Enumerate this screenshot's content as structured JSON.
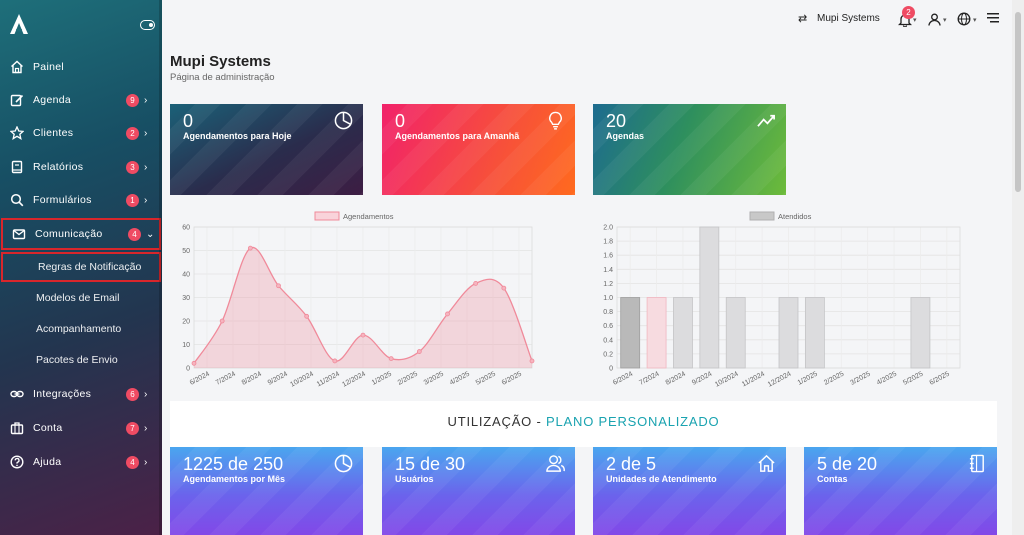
{
  "sidebar": {
    "items": [
      {
        "label": "Painel",
        "badge": null,
        "icon": "home-icon"
      },
      {
        "label": "Agenda",
        "badge": "9",
        "icon": "edit-icon"
      },
      {
        "label": "Clientes",
        "badge": "2",
        "icon": "star-icon"
      },
      {
        "label": "Relatórios",
        "badge": "3",
        "icon": "book-icon"
      },
      {
        "label": "Formulários",
        "badge": "1",
        "icon": "search-icon"
      },
      {
        "label": "Comunicação",
        "badge": "4",
        "icon": "mail-icon"
      },
      {
        "label": "Integrações",
        "badge": "6",
        "icon": "link-icon"
      },
      {
        "label": "Conta",
        "badge": "7",
        "icon": "briefcase-icon"
      },
      {
        "label": "Ajuda",
        "badge": "4",
        "icon": "help-icon"
      }
    ],
    "subitems": [
      {
        "label": "Regras de Notificação"
      },
      {
        "label": "Modelos de Email"
      },
      {
        "label": "Acompanhamento"
      },
      {
        "label": "Pacotes de Envio"
      }
    ]
  },
  "topbar": {
    "company": "Mupi Systems",
    "notifications": "2"
  },
  "header": {
    "title": "Mupi Systems",
    "subtitle": "Página de administração"
  },
  "cards": [
    {
      "value": "0",
      "label": "Agendamentos para Hoje",
      "icon": "pie-icon"
    },
    {
      "value": "0",
      "label": "Agendamentos para Amanhã",
      "icon": "bulb-icon"
    },
    {
      "value": "20",
      "label": "Agendas",
      "icon": "trend-icon"
    }
  ],
  "usage": {
    "title": "UTILIZAÇÃO - ",
    "plan": "PLANO PERSONALIZADO",
    "cards": [
      {
        "value": "1225 de 250",
        "label": "Agendamentos por Mês",
        "icon": "pie-icon"
      },
      {
        "value": "15 de 30",
        "label": "Usuários",
        "icon": "users-icon"
      },
      {
        "value": "2 de 5",
        "label": "Unidades de Atendimento",
        "icon": "home-icon"
      },
      {
        "value": "5 de 20",
        "label": "Contas",
        "icon": "notebook-icon"
      }
    ]
  },
  "colors": {
    "accent": "#1aa3b0",
    "badge": "#ef4b63",
    "highlight": "#d9262b"
  },
  "chart_data": [
    {
      "type": "area",
      "categories": [
        "6/2024",
        "7/2024",
        "8/2024",
        "9/2024",
        "10/2024",
        "11/2024",
        "12/2024",
        "1/2025",
        "2/2025",
        "3/2025",
        "4/2025",
        "5/2025",
        "6/2025"
      ],
      "series": [
        {
          "name": "Agendamentos",
          "values": [
            2,
            20,
            51,
            35,
            22,
            3,
            14,
            4,
            7,
            23,
            36,
            34,
            3
          ],
          "color": "#f08a9a"
        }
      ],
      "yticks": [
        "0",
        "10",
        "20",
        "30",
        "40",
        "50",
        "60"
      ],
      "ylim": [
        0,
        60
      ],
      "legend": "top"
    },
    {
      "type": "bar",
      "categories": [
        "6/2024",
        "7/2024",
        "8/2024",
        "9/2024",
        "10/2024",
        "11/2024",
        "12/2024",
        "1/2025",
        "2/2025",
        "3/2025",
        "4/2025",
        "5/2025",
        "6/2025"
      ],
      "series": [
        {
          "name": "Atendidos",
          "values": [
            1,
            1,
            1,
            2,
            1,
            0,
            1,
            1,
            0,
            0,
            0,
            1,
            0
          ]
        }
      ],
      "yticks": [
        "0",
        "0.2",
        "0.4",
        "0.6",
        "0.8",
        "1.0",
        "1.2",
        "1.4",
        "1.6",
        "1.8",
        "2.0"
      ],
      "ylim": [
        0,
        2.0
      ],
      "legend": "top"
    }
  ]
}
